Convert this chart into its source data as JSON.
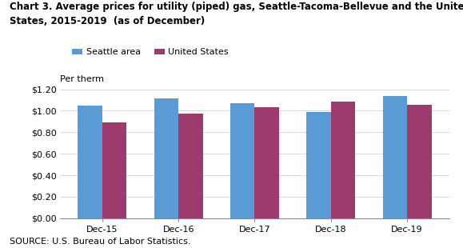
{
  "title_line1": "Chart 3. Average prices for utility (piped) gas, Seattle-Tacoma-Bellevue and the United",
  "title_line2": "States, 2015-2019  (as of December)",
  "per_therm_label": "Per therm",
  "categories": [
    "Dec-15",
    "Dec-16",
    "Dec-17",
    "Dec-18",
    "Dec-19"
  ],
  "seattle_values": [
    1.047,
    1.114,
    1.071,
    0.988,
    1.135
  ],
  "us_values": [
    0.893,
    0.971,
    1.036,
    1.082,
    1.056
  ],
  "seattle_color": "#5B9BD5",
  "us_color": "#9E3B6E",
  "ylim": [
    0.0,
    1.2
  ],
  "yticks": [
    0.0,
    0.2,
    0.4,
    0.6,
    0.8,
    1.0,
    1.2
  ],
  "ytick_labels": [
    "$0.00",
    "$0.20",
    "$0.40",
    "$0.60",
    "$0.80",
    "$1.00",
    "$1.20"
  ],
  "source_text": "SOURCE: U.S. Bureau of Labor Statistics.",
  "legend_seattle": "Seattle area",
  "legend_us": "United States",
  "bar_width": 0.32,
  "background_color": "#FFFFFF"
}
